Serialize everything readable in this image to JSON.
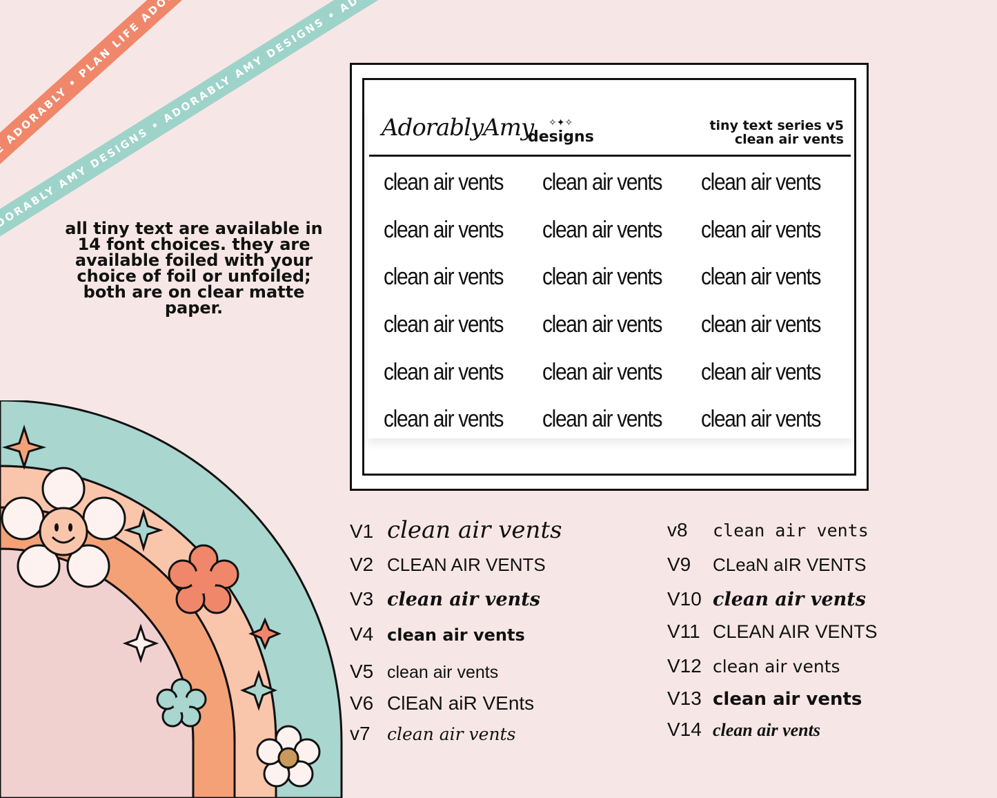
{
  "banners": {
    "orange": "PLAN LIFE ADORABLY • PLAN LIFE ADORABLY",
    "teal": "ADORABLY AMY DESIGNS • ADORABLY AMY DESIGNS • ADORABLY AMY DESIGNS"
  },
  "info_text": "all tiny text are available in 14 font choices. they are available foiled with your choice of foil or unfoiled; both are on clear matte paper.",
  "sheet": {
    "brand": "AdorablyAmy",
    "brand_sub": "designs",
    "series_line1": "tiny text series v5",
    "series_line2": "clean air vents",
    "sticker_text": "clean air vents",
    "rows": 6,
    "cols": 3
  },
  "versions_left": [
    {
      "label": "V1",
      "text": "clean air vents"
    },
    {
      "label": "V2",
      "text": "CLEAN AIR VENTS"
    },
    {
      "label": "V3",
      "text": "clean air vents"
    },
    {
      "label": "V4",
      "text": "clean air vents"
    },
    {
      "label": "V5",
      "text": "clean air vents"
    },
    {
      "label": "V6",
      "text": "ClEaN aiR VEnts"
    },
    {
      "label": "v7",
      "text": "clean air vents"
    }
  ],
  "versions_right": [
    {
      "label": "v8",
      "text": "clean air vents"
    },
    {
      "label": "V9",
      "text": "CLeaN aIR VENTS"
    },
    {
      "label": "V10",
      "text": "clean air vents"
    },
    {
      "label": "V11",
      "text": "CLEAN AIR VENTS"
    },
    {
      "label": "V12",
      "text": "clean air vents"
    },
    {
      "label": "V13",
      "text": "clean air vents"
    },
    {
      "label": "V14",
      "text": "clean air vents"
    }
  ],
  "colors": {
    "background": "#f6e7e6",
    "orange": "#f0876a",
    "teal": "#9ed3c9",
    "peach": "#f9c6ac",
    "pink": "#f1d1d0"
  }
}
